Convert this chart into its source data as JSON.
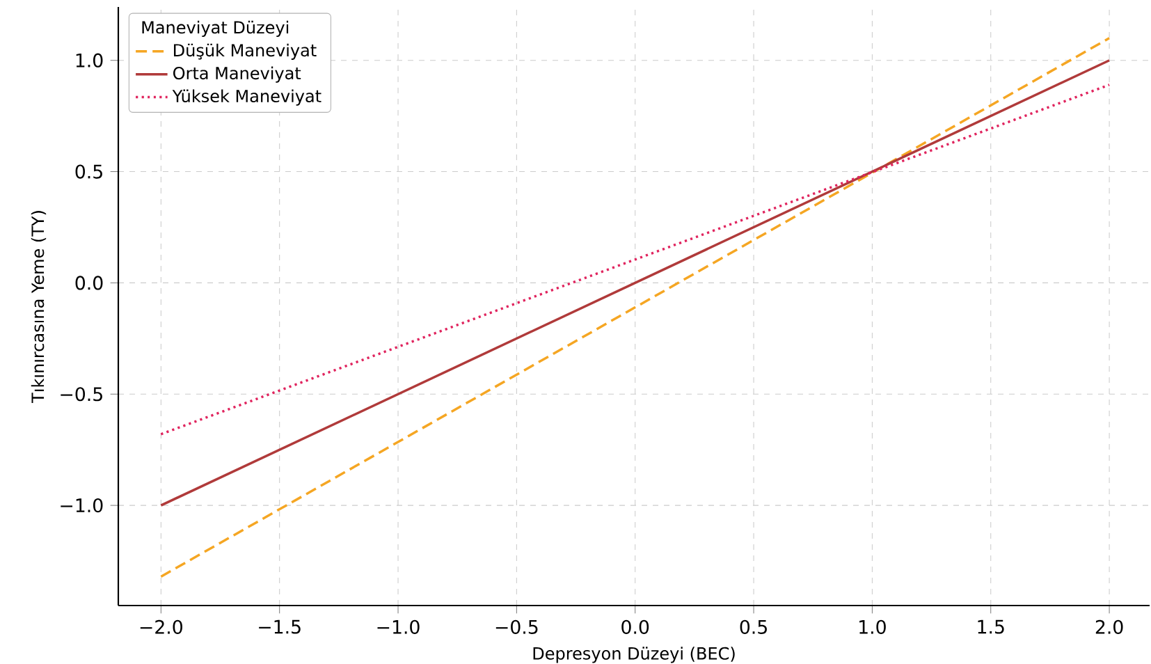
{
  "chart_data": {
    "type": "line",
    "xlabel": "Depresyon Düzeyi (BEC)",
    "ylabel": "Tıkınırcasına Yeme (TY)",
    "legend_title": "Maneviyat Düzeyi",
    "x": [
      -2.0,
      2.0
    ],
    "series": [
      {
        "name": "Düşük Maneviyat",
        "color": "#f5a623",
        "line_style": "dashed",
        "values": [
          -1.32,
          1.1
        ]
      },
      {
        "name": "Orta Maneviyat",
        "color": "#b03a3a",
        "line_style": "solid",
        "values": [
          -1.0,
          1.0
        ]
      },
      {
        "name": "Yüksek Maneviyat",
        "color": "#e0245e",
        "line_style": "dotted",
        "values": [
          -0.68,
          0.89
        ]
      }
    ],
    "xlim": [
      -2.18,
      2.17
    ],
    "ylim": [
      -1.45,
      1.24
    ],
    "xticks": [
      {
        "value": -2,
        "label": "−2.0"
      },
      {
        "value": -1.5,
        "label": "−1.5"
      },
      {
        "value": -1,
        "label": "−1.0"
      },
      {
        "value": -0.5,
        "label": "−0.5"
      },
      {
        "value": 0,
        "label": "0.0"
      },
      {
        "value": 0.5,
        "label": "0.5"
      },
      {
        "value": 1,
        "label": "1.0"
      },
      {
        "value": 1.5,
        "label": "1.5"
      },
      {
        "value": 2,
        "label": "2.0"
      }
    ],
    "yticks": [
      {
        "value": -1,
        "label": "−1.0"
      },
      {
        "value": -0.5,
        "label": "−0.5"
      },
      {
        "value": 0,
        "label": "0.0"
      },
      {
        "value": 0.5,
        "label": "0.5"
      },
      {
        "value": 1,
        "label": "1.0"
      }
    ],
    "grid": true,
    "legend": "top left",
    "marker": "none"
  }
}
